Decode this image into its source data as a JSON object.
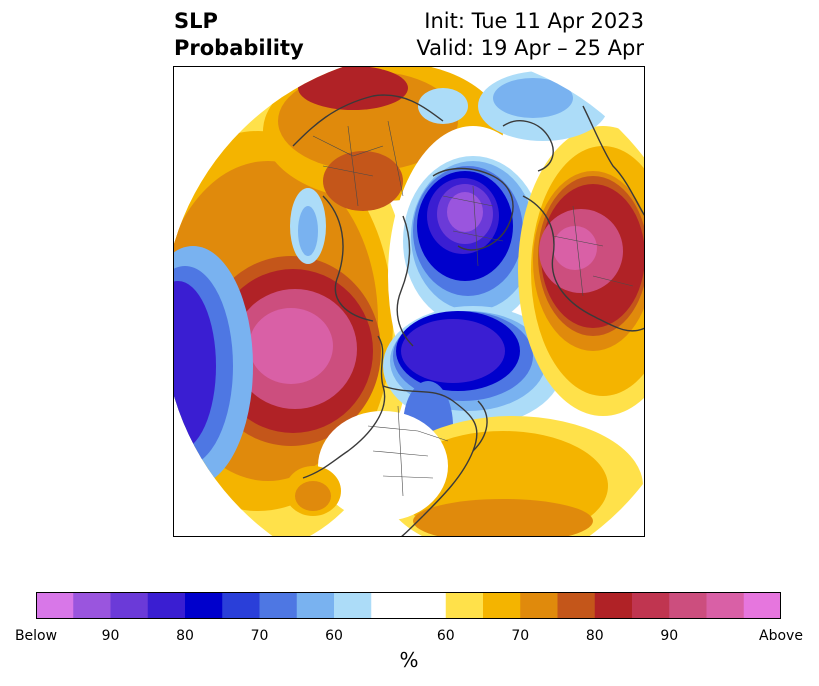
{
  "title": {
    "left_line1": "SLP",
    "left_line2": "Probability",
    "right_line1": "Init: Tue 11 Apr 2023",
    "right_line2": "Valid: 19 Apr – 25 Apr"
  },
  "colorbar": {
    "unit": "%",
    "colors": [
      "#d877e8",
      "#9a55de",
      "#6b3ad8",
      "#3a1ed2",
      "#0000cc",
      "#2a3fd9",
      "#4e77e3",
      "#79b2f0",
      "#acdcf8",
      "#ffffff",
      "#ffe14a",
      "#f4b400",
      "#e08a0c",
      "#c4561a",
      "#b02226",
      "#c03550",
      "#cc4e7e",
      "#d960a6",
      "#e676de"
    ],
    "tick_labels": [
      "Below",
      "90",
      "80",
      "70",
      "60",
      "60",
      "70",
      "80",
      "90",
      "Above"
    ]
  },
  "palette": {
    "below": [
      "#9a55de",
      "#3a1ed2",
      "#0000cc",
      "#4e77e3",
      "#79b2f0",
      "#acdcf8"
    ],
    "above": [
      "#ffe14a",
      "#f4b400",
      "#e08a0c",
      "#c4561a",
      "#b02226",
      "#cc4e7e",
      "#d960a6"
    ]
  }
}
